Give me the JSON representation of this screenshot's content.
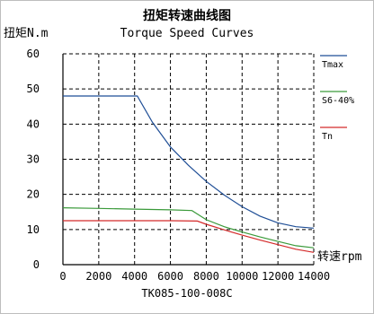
{
  "chart_data": {
    "type": "line",
    "title": "扭矩转速曲线图",
    "subtitle": "Torque Speed Curves",
    "ylabel": "扭矩N.m",
    "xlabel": "转速rpm",
    "model": "TK085-100-008C",
    "xlim": [
      0,
      14000
    ],
    "ylim": [
      0,
      60
    ],
    "x_ticks": [
      "0",
      "2000",
      "4000",
      "6000",
      "8000",
      "10000",
      "12000",
      "14000"
    ],
    "y_ticks": [
      "0",
      "10",
      "20",
      "30",
      "40",
      "50",
      "60"
    ],
    "grid": true,
    "legend_position": "right",
    "series": [
      {
        "name": "Tmax",
        "color": "#1f4e96",
        "points": [
          [
            0,
            48
          ],
          [
            4150,
            48
          ],
          [
            5000,
            40.5
          ],
          [
            6000,
            33.5
          ],
          [
            7000,
            28.3
          ],
          [
            8000,
            23.7
          ],
          [
            9000,
            19.8
          ],
          [
            10000,
            16.5
          ],
          [
            11000,
            13.8
          ],
          [
            12000,
            11.9
          ],
          [
            13000,
            10.8
          ],
          [
            14000,
            10.4
          ]
        ]
      },
      {
        "name": "S6-40%",
        "color": "#3a9a3a",
        "points": [
          [
            0,
            16.2
          ],
          [
            2000,
            16.0
          ],
          [
            4000,
            15.8
          ],
          [
            6000,
            15.6
          ],
          [
            7200,
            15.4
          ],
          [
            8000,
            12.8
          ],
          [
            9000,
            10.8
          ],
          [
            10000,
            9.3
          ],
          [
            11000,
            7.9
          ],
          [
            12000,
            6.6
          ],
          [
            13000,
            5.4
          ],
          [
            14000,
            4.8
          ]
        ]
      },
      {
        "name": "Tn",
        "color": "#d42a2a",
        "points": [
          [
            0,
            12.5
          ],
          [
            2000,
            12.5
          ],
          [
            4000,
            12.5
          ],
          [
            6000,
            12.5
          ],
          [
            7500,
            12.4
          ],
          [
            8000,
            11.5
          ],
          [
            9000,
            9.9
          ],
          [
            10000,
            8.4
          ],
          [
            11000,
            7.0
          ],
          [
            12000,
            5.7
          ],
          [
            13000,
            4.4
          ],
          [
            14000,
            3.5
          ]
        ]
      }
    ]
  }
}
